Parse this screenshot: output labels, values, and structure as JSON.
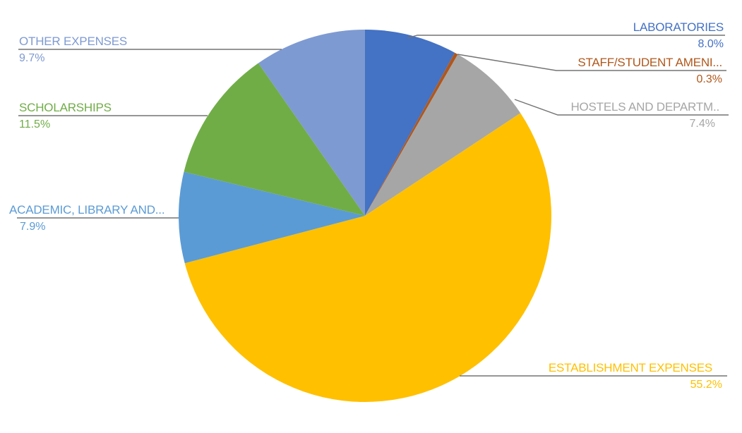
{
  "chart_data": {
    "type": "pie",
    "title": "",
    "legend": "none",
    "label_style": "outside-callouts-with-leader-lines",
    "background": "#FFFFFF",
    "leader_line_color": "#737373",
    "start_angle_deg": 0,
    "direction": "clockwise",
    "slices": [
      {
        "label": "LABORATORIES",
        "value": 8.0,
        "display": "8.0%",
        "color": "#4472C4"
      },
      {
        "label": "STAFF/STUDENT AMENI...",
        "value": 0.3,
        "display": "0.3%",
        "color": "#B0571B"
      },
      {
        "label": "HOSTELS AND DEPARTM..",
        "value": 7.4,
        "display": "7.4%",
        "color": "#A6A6A6"
      },
      {
        "label": "ESTABLISHMENT EXPENSES",
        "value": 55.2,
        "display": "55.2%",
        "color": "#FFC000"
      },
      {
        "label": "ACADEMIC, LIBRARY AND...",
        "value": 7.9,
        "display": "7.9%",
        "color": "#5B9BD5"
      },
      {
        "label": "SCHOLARSHIPS",
        "value": 11.5,
        "display": "11.5%",
        "color": "#70AD47"
      },
      {
        "label": "OTHER EXPENSES",
        "value": 9.7,
        "display": "9.7%",
        "color": "#7E9AD2"
      }
    ]
  }
}
